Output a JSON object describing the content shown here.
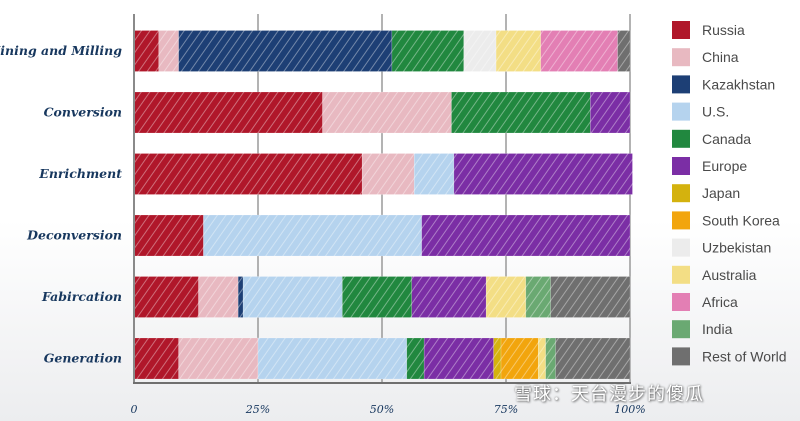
{
  "chart_data": {
    "type": "bar",
    "orientation": "horizontal",
    "stacked": true,
    "categories": [
      "Mining and Milling",
      "Conversion",
      "Enrichment",
      "Deconversion",
      "Fabircation",
      "Generation"
    ],
    "xlim": [
      0,
      100
    ],
    "x_ticks": [
      "0",
      "25%",
      "50%",
      "75%",
      "100%"
    ],
    "grid": true,
    "legend_position": "right",
    "series": [
      {
        "name": "Russia",
        "color": "#b0172a",
        "values": [
          5,
          38,
          46,
          14,
          13,
          9
        ]
      },
      {
        "name": "China",
        "color": "#e8b9c1",
        "values": [
          4,
          26,
          10.5,
          0,
          8,
          16
        ]
      },
      {
        "name": "Kazakhstan",
        "color": "#1d3f75",
        "values": [
          43,
          0,
          0,
          0,
          1,
          0
        ]
      },
      {
        "name": "U.S.",
        "color": "#b5d3ee",
        "values": [
          0,
          0,
          8,
          44,
          20,
          30
        ]
      },
      {
        "name": "Canada",
        "color": "#21883f",
        "values": [
          14.5,
          28,
          0,
          0,
          14,
          3.5
        ]
      },
      {
        "name": "Europe",
        "color": "#7b2ea5",
        "values": [
          0,
          8,
          36,
          42,
          15,
          14
        ]
      },
      {
        "name": "Japan",
        "color": "#d4b20e",
        "values": [
          0,
          0,
          0,
          0,
          0,
          1.5
        ]
      },
      {
        "name": "South Korea",
        "color": "#f2a50d",
        "values": [
          0,
          0,
          0,
          0,
          0,
          7.5
        ]
      },
      {
        "name": "Uzbekistan",
        "color": "#ececec",
        "values": [
          6.5,
          0,
          0,
          0,
          0,
          0
        ]
      },
      {
        "name": "Australia",
        "color": "#f3de85",
        "values": [
          9,
          0,
          0,
          0,
          8,
          1.5
        ]
      },
      {
        "name": "Africa",
        "color": "#e37fb4",
        "values": [
          15.5,
          0,
          0,
          0,
          0,
          0
        ]
      },
      {
        "name": "India",
        "color": "#6aa972",
        "values": [
          0,
          0,
          0,
          0,
          5,
          2
        ]
      },
      {
        "name": "Rest of World",
        "color": "#6f6f6f",
        "values": [
          2.5,
          0,
          0,
          0,
          16,
          15
        ]
      }
    ]
  },
  "watermark": "雪球：天台漫步的傻瓜"
}
